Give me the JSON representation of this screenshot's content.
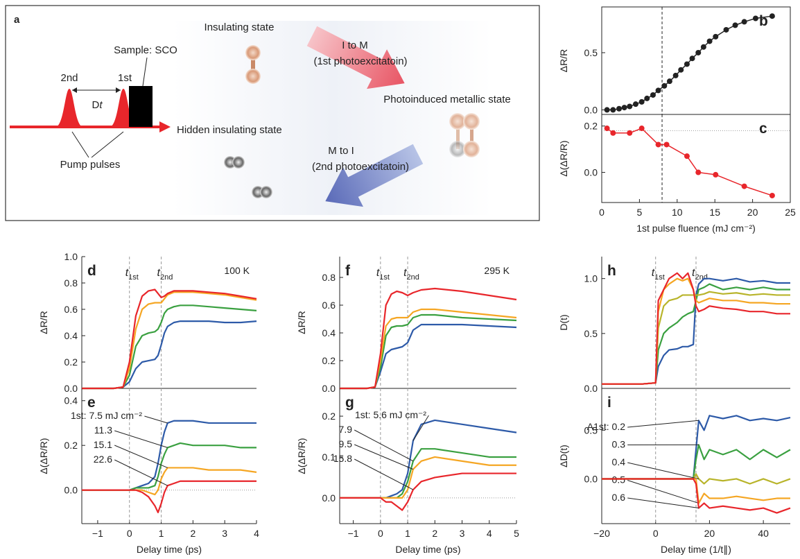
{
  "diagram": {
    "panel": "a",
    "insulating_state": "Insulating state",
    "arrow1_label": "I to M",
    "arrow1_note": "(1st photoexcitatoin)",
    "sample": "Sample: SCO",
    "pulse2": "2nd",
    "pulse1": "1st",
    "delay": {
      "text": "D",
      "sub": "t"
    },
    "metallic_state": "Photoinduced metallic state",
    "hidden_state": "Hidden insulating state",
    "arrow2_label": "M to I",
    "arrow2_note": "(2nd photoexcitatoin)",
    "pump_pulses": "Pump pulses"
  },
  "chart_data": [
    {
      "type": "line",
      "markers": true,
      "panel": "b",
      "y_label": "ΔR/R",
      "xlim": [
        0,
        25
      ],
      "ylim": [
        -0.04,
        0.9
      ],
      "yticks": [
        {
          "value": 0,
          "label": "0.0"
        },
        0.5
      ],
      "vlines": [
        8
      ],
      "x": [
        0.7,
        1.5,
        2.3,
        3.0,
        3.7,
        4.5,
        5.3,
        6.0,
        6.8,
        7.5,
        8.3,
        9.0,
        9.8,
        10.5,
        11.3,
        12.0,
        12.8,
        13.5,
        14.3,
        15.1,
        16.5,
        17.7,
        18.9,
        20.4,
        22.6
      ],
      "series": [
        {
          "color": "#222222",
          "values": [
            0,
            0,
            0.01,
            0.02,
            0.03,
            0.05,
            0.07,
            0.1,
            0.13,
            0.17,
            0.21,
            0.25,
            0.3,
            0.35,
            0.4,
            0.45,
            0.5,
            0.55,
            0.6,
            0.64,
            0.7,
            0.74,
            0.77,
            0.8,
            0.82
          ]
        }
      ]
    },
    {
      "type": "line",
      "markers": true,
      "panel": "c",
      "y_label": "Δ(ΔR/R)",
      "x_label": "1st pulse fluence (mJ cm⁻²)",
      "xlim": [
        0,
        25
      ],
      "ylim": [
        -0.13,
        0.25
      ],
      "xticks": [
        0,
        5,
        10,
        15,
        20,
        25
      ],
      "yticks": [
        {
          "value": 0,
          "label": "0.0"
        },
        0.2
      ],
      "vlines": [
        8
      ],
      "hlines": [
        0.18
      ],
      "x": [
        0.7,
        1.5,
        3.7,
        5.3,
        7.5,
        8.6,
        11.3,
        12.8,
        15.1,
        18.9,
        22.6
      ],
      "series": [
        {
          "color": "#e8262b",
          "values": [
            0.19,
            0.17,
            0.17,
            0.19,
            0.12,
            0.12,
            0.07,
            0.0,
            -0.01,
            -0.06,
            -0.1
          ]
        }
      ]
    },
    {
      "type": "line",
      "panel": "d",
      "y_label": "ΔR/R",
      "annotation": "100 K",
      "xlim": [
        -1.5,
        4
      ],
      "ylim": [
        0,
        1.0
      ],
      "yticks": [
        {
          "value": 0,
          "label": "0.0"
        },
        0.2,
        0.4,
        0.6,
        0.8,
        {
          "value": 1,
          "label": "1.0"
        }
      ],
      "vlines": [
        0,
        1
      ],
      "vline_labels": [
        {
          "text": "t",
          "sub": "1st"
        },
        {
          "text": "t",
          "sub": "2nd"
        }
      ],
      "x": [
        -1.5,
        -0.5,
        -0.2,
        0,
        0.2,
        0.4,
        0.6,
        0.8,
        0.9,
        1.0,
        1.1,
        1.2,
        1.4,
        1.6,
        2,
        2.5,
        3,
        3.5,
        4
      ],
      "series": [
        {
          "color": "#2d5aa8",
          "values": [
            0,
            0,
            0.01,
            0.05,
            0.15,
            0.2,
            0.21,
            0.22,
            0.25,
            0.33,
            0.42,
            0.47,
            0.5,
            0.51,
            0.51,
            0.51,
            0.5,
            0.5,
            0.51
          ]
        },
        {
          "color": "#3aa040",
          "values": [
            0,
            0,
            0.01,
            0.1,
            0.32,
            0.4,
            0.42,
            0.43,
            0.45,
            0.5,
            0.57,
            0.6,
            0.62,
            0.63,
            0.63,
            0.62,
            0.61,
            0.6,
            0.59
          ]
        },
        {
          "color": "#f5a623",
          "values": [
            0,
            0,
            0.01,
            0.15,
            0.45,
            0.6,
            0.64,
            0.65,
            0.65,
            0.65,
            0.68,
            0.71,
            0.73,
            0.73,
            0.73,
            0.72,
            0.71,
            0.69,
            0.67
          ]
        },
        {
          "color": "#e8262b",
          "values": [
            0,
            0,
            0.01,
            0.2,
            0.55,
            0.7,
            0.74,
            0.75,
            0.72,
            0.69,
            0.7,
            0.72,
            0.74,
            0.74,
            0.74,
            0.73,
            0.72,
            0.7,
            0.68
          ]
        }
      ]
    },
    {
      "type": "line",
      "panel": "e",
      "y_label": "Δ(ΔR/R)",
      "x_label": "Delay time (ps)",
      "xlim": [
        -1.5,
        4
      ],
      "ylim": [
        -0.15,
        0.455
      ],
      "xticks": [
        {
          "value": -1,
          "label": "−1"
        },
        0,
        1,
        2,
        3,
        4
      ],
      "yticks": [
        {
          "value": 0,
          "label": "0.0"
        },
        0.2,
        0.4
      ],
      "vlines": [
        0,
        1
      ],
      "hlines": [
        0
      ],
      "x": [
        -1.5,
        -0.5,
        -0.2,
        0,
        0.2,
        0.4,
        0.6,
        0.8,
        0.9,
        1.0,
        1.1,
        1.2,
        1.4,
        1.6,
        2,
        2.5,
        3,
        3.5,
        4
      ],
      "series": [
        {
          "name": "1st: 7.5 mJ cm⁻²",
          "color": "#2d5aa8",
          "values": [
            0,
            0,
            0,
            0,
            0.01,
            0.02,
            0.03,
            0.06,
            0.12,
            0.2,
            0.26,
            0.3,
            0.31,
            0.31,
            0.31,
            0.3,
            0.3,
            0.3,
            0.3
          ]
        },
        {
          "name": "11.3",
          "color": "#3aa040",
          "values": [
            0,
            0,
            0,
            0,
            0.01,
            0.01,
            0.01,
            0.02,
            0.06,
            0.12,
            0.16,
            0.19,
            0.2,
            0.21,
            0.2,
            0.2,
            0.2,
            0.19,
            0.19
          ]
        },
        {
          "name": "15.1",
          "color": "#f5a623",
          "values": [
            0,
            0,
            0,
            0,
            0,
            0,
            -0.01,
            -0.02,
            0,
            0.05,
            0.08,
            0.1,
            0.1,
            0.1,
            0.1,
            0.09,
            0.09,
            0.09,
            0.08
          ]
        },
        {
          "name": "22.6",
          "color": "#e8262b",
          "values": [
            0,
            0,
            0,
            0,
            0,
            -0.01,
            -0.03,
            -0.07,
            -0.1,
            -0.06,
            -0.01,
            0.02,
            0.03,
            0.04,
            0.04,
            0.04,
            0.04,
            0.04,
            0.04
          ]
        }
      ]
    },
    {
      "type": "line",
      "panel": "f",
      "y_label": "ΔR/R",
      "annotation": "295 K",
      "xlim": [
        -1.5,
        5
      ],
      "ylim": [
        0,
        0.95
      ],
      "yticks": [
        {
          "value": 0,
          "label": "0.0"
        },
        0.2,
        0.4,
        0.6,
        0.8
      ],
      "vlines": [
        0,
        1
      ],
      "vline_labels": [
        {
          "text": "t",
          "sub": "1st"
        },
        {
          "text": "t",
          "sub": "2nd"
        }
      ],
      "x": [
        -1.5,
        -0.5,
        -0.2,
        0,
        0.2,
        0.4,
        0.6,
        0.8,
        1.0,
        1.2,
        1.5,
        2,
        3,
        4,
        5
      ],
      "series": [
        {
          "color": "#2d5aa8",
          "values": [
            0,
            0,
            0.01,
            0.12,
            0.25,
            0.28,
            0.29,
            0.3,
            0.33,
            0.42,
            0.46,
            0.46,
            0.46,
            0.45,
            0.44
          ]
        },
        {
          "color": "#3aa040",
          "values": [
            0,
            0,
            0.01,
            0.15,
            0.38,
            0.44,
            0.45,
            0.45,
            0.46,
            0.51,
            0.53,
            0.53,
            0.51,
            0.5,
            0.49
          ]
        },
        {
          "color": "#f5a623",
          "values": [
            0,
            0,
            0.01,
            0.2,
            0.45,
            0.5,
            0.51,
            0.51,
            0.51,
            0.55,
            0.57,
            0.57,
            0.55,
            0.53,
            0.51
          ]
        },
        {
          "color": "#e8262b",
          "values": [
            0,
            0,
            0.01,
            0.25,
            0.6,
            0.68,
            0.7,
            0.69,
            0.67,
            0.69,
            0.71,
            0.72,
            0.7,
            0.67,
            0.64
          ]
        }
      ]
    },
    {
      "type": "line",
      "panel": "g",
      "y_label": "Δ(ΔR/R)",
      "x_label": "Delay time (ps)",
      "xlim": [
        -1.5,
        5
      ],
      "ylim": [
        -0.063,
        0.268
      ],
      "xticks": [
        {
          "value": -1,
          "label": "−1"
        },
        0,
        1,
        2,
        3,
        4,
        5
      ],
      "yticks": [
        {
          "value": 0,
          "label": "0.0"
        },
        0.1,
        0.2
      ],
      "vlines": [
        0,
        1
      ],
      "hlines": [
        0
      ],
      "x": [
        -1.5,
        -0.5,
        -0.2,
        0,
        0.2,
        0.4,
        0.6,
        0.8,
        1.0,
        1.2,
        1.5,
        2,
        3,
        4,
        5
      ],
      "series": [
        {
          "name": "1st: 5.6 mJ cm⁻²",
          "color": "#2d5aa8",
          "values": [
            0,
            0,
            0,
            0,
            0,
            0.005,
            0.01,
            0.02,
            0.06,
            0.14,
            0.18,
            0.19,
            0.18,
            0.17,
            0.16
          ]
        },
        {
          "name": "7.9",
          "color": "#3aa040",
          "values": [
            0,
            0,
            0,
            0,
            0,
            0,
            0,
            0.01,
            0.04,
            0.09,
            0.12,
            0.12,
            0.11,
            0.1,
            0.1
          ]
        },
        {
          "name": "9.5",
          "color": "#f5a623",
          "values": [
            0,
            0,
            0,
            0,
            0,
            0,
            0,
            0,
            0.02,
            0.07,
            0.09,
            0.1,
            0.09,
            0.08,
            0.08
          ]
        },
        {
          "name": "15.8",
          "color": "#e8262b",
          "values": [
            0,
            0,
            0,
            0,
            -0.01,
            -0.01,
            -0.02,
            -0.03,
            -0.01,
            0.02,
            0.04,
            0.05,
            0.06,
            0.06,
            0.06
          ]
        }
      ]
    },
    {
      "type": "line",
      "panel": "h",
      "y_label": "D(t)",
      "xlim": [
        -20,
        50
      ],
      "ylim": [
        0,
        1.2
      ],
      "yticks": [
        {
          "value": 0,
          "label": "0.0"
        },
        0.5,
        {
          "value": 1,
          "label": "1.0"
        }
      ],
      "vlines": [
        0,
        15
      ],
      "vline_labels": [
        {
          "text": "t",
          "sub": "1st"
        },
        {
          "text": "t",
          "sub": "2nd"
        }
      ],
      "x": [
        -20,
        -5,
        0,
        1,
        3,
        5,
        8,
        10,
        12,
        14,
        15,
        16,
        18,
        20,
        25,
        30,
        35,
        40,
        45,
        50
      ],
      "series": [
        {
          "color": "#2d5aa8",
          "values": [
            0.04,
            0.04,
            0.05,
            0.2,
            0.3,
            0.35,
            0.36,
            0.38,
            0.38,
            0.4,
            0.85,
            0.95,
            1.0,
            1.0,
            0.98,
            1.0,
            0.97,
            0.98,
            0.96,
            0.96
          ]
        },
        {
          "color": "#3aa040",
          "values": [
            0.04,
            0.04,
            0.05,
            0.35,
            0.5,
            0.55,
            0.6,
            0.65,
            0.68,
            0.7,
            0.8,
            0.9,
            0.92,
            0.95,
            0.9,
            0.92,
            0.9,
            0.92,
            0.9,
            0.9
          ]
        },
        {
          "color": "#b8b42a",
          "values": [
            0.04,
            0.04,
            0.05,
            0.55,
            0.75,
            0.8,
            0.82,
            0.85,
            0.85,
            0.85,
            0.85,
            0.85,
            0.86,
            0.88,
            0.86,
            0.87,
            0.85,
            0.86,
            0.85,
            0.85
          ]
        },
        {
          "color": "#f5a623",
          "values": [
            0.04,
            0.04,
            0.05,
            0.7,
            0.9,
            0.95,
            1.0,
            0.98,
            1.0,
            0.9,
            0.8,
            0.78,
            0.8,
            0.82,
            0.8,
            0.8,
            0.78,
            0.78,
            0.77,
            0.77
          ]
        },
        {
          "color": "#e8262b",
          "values": [
            0.04,
            0.04,
            0.05,
            0.8,
            0.9,
            1.0,
            1.05,
            1.0,
            1.05,
            0.9,
            0.75,
            0.7,
            0.72,
            0.75,
            0.73,
            0.72,
            0.7,
            0.7,
            0.68,
            0.68
          ]
        }
      ]
    },
    {
      "type": "line",
      "panel": "i",
      "y_label": "ΔD(t)",
      "x_label": "Delay time (1/t∥)",
      "xlim": [
        -20,
        50
      ],
      "ylim": [
        -0.46,
        0.93
      ],
      "xticks": [
        {
          "value": -20,
          "label": "−20"
        },
        0,
        20,
        40
      ],
      "yticks": [
        {
          "value": 0,
          "label": "0.0"
        },
        0.5
      ],
      "vlines": [
        0,
        15
      ],
      "x": [
        -20,
        -5,
        0,
        1,
        3,
        5,
        8,
        10,
        12,
        14,
        15,
        16,
        18,
        20,
        25,
        30,
        35,
        40,
        45,
        50
      ],
      "series": [
        {
          "name": "A1st: 0.2",
          "color": "#2d5aa8",
          "values": [
            0,
            0,
            0,
            0,
            0,
            0,
            0,
            0,
            0,
            0,
            0.3,
            0.6,
            0.5,
            0.65,
            0.62,
            0.65,
            0.6,
            0.62,
            0.6,
            0.63
          ]
        },
        {
          "name": "0.3",
          "color": "#3aa040",
          "values": [
            0,
            0,
            0,
            0,
            0,
            0,
            0,
            0,
            0,
            0,
            0.2,
            0.35,
            0.2,
            0.3,
            0.25,
            0.3,
            0.2,
            0.3,
            0.22,
            0.3
          ]
        },
        {
          "name": "0.4",
          "color": "#b8b42a",
          "values": [
            0,
            0,
            0,
            0,
            0,
            0,
            0,
            0,
            0,
            0,
            0.05,
            0,
            -0.05,
            0,
            -0.02,
            0,
            -0.05,
            0,
            -0.05,
            0
          ]
        },
        {
          "name": "0.5",
          "color": "#f5a623",
          "values": [
            0,
            0,
            0,
            0,
            0,
            0,
            0,
            0,
            0,
            0,
            0,
            -0.25,
            -0.15,
            -0.2,
            -0.2,
            -0.18,
            -0.2,
            -0.22,
            -0.2,
            -0.2
          ]
        },
        {
          "name": "0.6",
          "color": "#e8262b",
          "values": [
            0,
            0,
            0,
            0,
            0,
            0,
            0,
            0,
            0,
            0,
            -0.05,
            -0.3,
            -0.25,
            -0.3,
            -0.28,
            -0.3,
            -0.32,
            -0.3,
            -0.35,
            -0.3
          ]
        }
      ]
    }
  ]
}
